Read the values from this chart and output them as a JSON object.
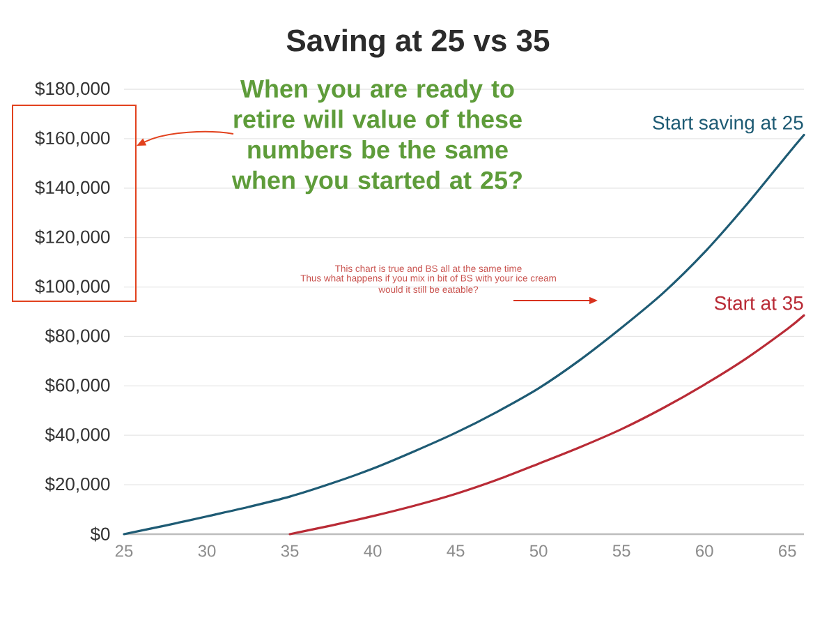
{
  "chart_data": {
    "type": "line",
    "title": "Saving at 25 vs 35",
    "annotations": [
      "When you are ready to retire will value of these numbers be the same when you started at 25?",
      "This chart is true and BS all at the same time",
      "Thus what happens if you mix in bit of BS with your ice cream",
      "would it still be eatable?"
    ],
    "series": [
      {
        "name": "Start saving at 25",
        "color": "#1e5b74",
        "x": [
          25,
          27.5,
          30,
          32.5,
          35,
          37.5,
          40,
          42.5,
          45,
          47.5,
          50,
          52.5,
          55,
          57.5,
          60,
          62.5,
          65,
          66
        ],
        "values": [
          0,
          3500,
          7200,
          11000,
          15200,
          20500,
          26500,
          33500,
          41000,
          49500,
          59000,
          70500,
          83500,
          97500,
          114000,
          133000,
          153500,
          161500
        ]
      },
      {
        "name": "Start at 35",
        "color": "#b92b36",
        "x": [
          35,
          37.5,
          40,
          42.5,
          45,
          47.5,
          50,
          52.5,
          55,
          57.5,
          60,
          62.5,
          65,
          66
        ],
        "values": [
          0,
          3500,
          7300,
          11500,
          16300,
          22000,
          28500,
          35200,
          42500,
          51000,
          60500,
          71000,
          83000,
          88500
        ]
      }
    ],
    "xlim": [
      25,
      66
    ],
    "xticks": [
      25,
      30,
      35,
      40,
      45,
      50,
      55,
      60,
      65
    ],
    "ylim": [
      0,
      180000
    ],
    "yticks": [
      {
        "value": 0,
        "label": "$0"
      },
      {
        "value": 20000,
        "label": "$20,000"
      },
      {
        "value": 40000,
        "label": "$40,000"
      },
      {
        "value": 60000,
        "label": "$60,000"
      },
      {
        "value": 80000,
        "label": "$80,000"
      },
      {
        "value": 100000,
        "label": "$100,000"
      },
      {
        "value": 120000,
        "label": "$120,000"
      },
      {
        "value": 140000,
        "label": "$140,000"
      },
      {
        "value": 160000,
        "label": "$160,000"
      },
      {
        "value": 180000,
        "label": "$180,000"
      }
    ],
    "grid": "y",
    "marker": "none",
    "line_style": "solid"
  }
}
